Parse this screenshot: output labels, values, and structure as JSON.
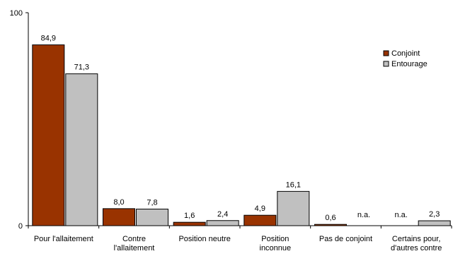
{
  "chart_data": {
    "type": "bar",
    "ylim": [
      0,
      100
    ],
    "yticks": [
      "0",
      "100"
    ],
    "categories": [
      [
        "Pour l'allaitement"
      ],
      [
        "Contre",
        "l'allaitement"
      ],
      [
        "Position neutre"
      ],
      [
        "Position",
        "inconnue"
      ],
      [
        "Pas de conjoint"
      ],
      [
        "Certains pour,",
        "d'autres contre"
      ]
    ],
    "series": [
      {
        "name": "Conjoint",
        "color": "#993300",
        "values": [
          84.9,
          8.0,
          1.6,
          4.9,
          0.6,
          null
        ],
        "labels": [
          "84,9",
          "8,0",
          "1,6",
          "4,9",
          "0,6",
          "n.a."
        ]
      },
      {
        "name": "Entourage",
        "color": "#c0c0c0",
        "values": [
          71.3,
          7.8,
          2.4,
          16.1,
          null,
          2.3
        ],
        "labels": [
          "71,3",
          "7,8",
          "2,4",
          "16,1",
          "n.a.",
          "2,3"
        ]
      }
    ],
    "legend_position": "top-right",
    "grid": false
  }
}
